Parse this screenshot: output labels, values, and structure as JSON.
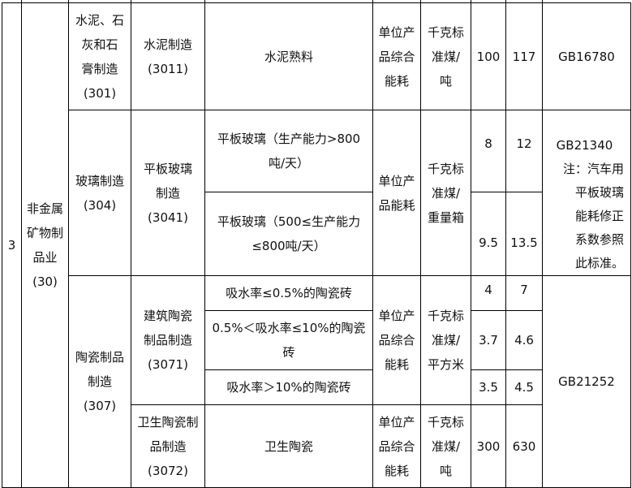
{
  "table": {
    "group_no": "3",
    "industry": "非金属\n矿物制\n品业\n(30)",
    "rows": [
      {
        "category": "水泥、石\n灰和石\n膏制造\n(301)",
        "subcategory": "水泥制造\n(3011)",
        "product": "水泥熟料",
        "indicator": "单位产\n品综合\n能耗",
        "unit": "千克标\n准煤/\n吨",
        "value1": "100",
        "value2": "117",
        "standard": "GB16780"
      },
      {
        "category": "玻璃制造\n(304)",
        "subcategory": "平板玻璃\n制造\n(3041)",
        "products": [
          {
            "product": "平板玻璃（生产能力>800\n吨/天）",
            "value1": "8",
            "value2": "12"
          },
          {
            "product": "平板玻璃（500≤生产能力\n≤800吨/天）",
            "value1": "9.5",
            "value2": "13.5"
          }
        ],
        "indicator": "单位产\n品能耗",
        "unit": "千克标\n准煤/\n重量箱",
        "standard": "GB21340",
        "note": "注：汽车用\n平板玻璃\n能耗修正\n系数参照\n此标准。"
      },
      {
        "category": "陶瓷制品\n制造\n(307)",
        "standard": "GB21252",
        "subgroups": [
          {
            "subcategory": "建筑陶瓷\n制品制造\n(3071)",
            "indicator": "单位产\n品综合\n能耗",
            "unit": "千克标\n准煤/\n平方米",
            "products": [
              {
                "product": "吸水率≤0.5%的陶瓷砖",
                "value1": "4",
                "value2": "7"
              },
              {
                "product": "0.5%＜吸水率≤10%的陶瓷\n砖",
                "value1": "3.7",
                "value2": "4.6"
              },
              {
                "product": "吸水率＞10%的陶瓷砖",
                "value1": "3.5",
                "value2": "4.5"
              }
            ]
          },
          {
            "subcategory": "卫生陶瓷制\n品制造\n(3072)",
            "indicator": "单位产\n品综合\n能耗",
            "unit": "千克标\n准煤/\n吨",
            "products": [
              {
                "product": "卫生陶瓷",
                "value1": "300",
                "value2": "630"
              }
            ]
          }
        ]
      }
    ]
  }
}
